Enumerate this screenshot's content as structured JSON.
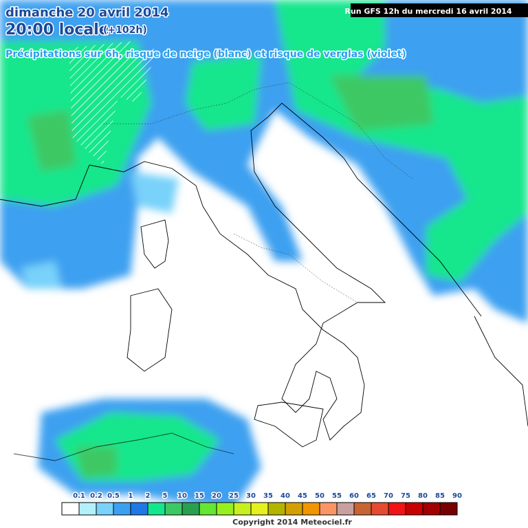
{
  "header": {
    "day": "dimanche 20 avril 2014",
    "time": "20:00 locale",
    "lead": "(+102h)",
    "subtitle": "Précipitations sur 6h, risque de neige (blanc) et risque de verglas (violet)",
    "run": "Run GFS 12h du mercredi 16 avril 2014"
  },
  "legend": {
    "labels": [
      "0.1",
      "0.2",
      "0.5",
      "1",
      "2",
      "5",
      "10",
      "15",
      "20",
      "25",
      "30",
      "35",
      "40",
      "45",
      "50",
      "55",
      "60",
      "65",
      "70",
      "75",
      "80",
      "85",
      "90"
    ],
    "colors": [
      "#ffffff",
      "#b4f0fa",
      "#78d2fa",
      "#3ca0f0",
      "#1e78e6",
      "#14e68c",
      "#3cc864",
      "#28a050",
      "#64e632",
      "#96f01e",
      "#c8f01e",
      "#e6f01e",
      "#b4b400",
      "#d2a000",
      "#f09600",
      "#fa9664",
      "#c8a0a0",
      "#c86432",
      "#e64b32",
      "#f01414",
      "#c80000",
      "#a00000",
      "#780000"
    ]
  },
  "footer": {
    "copyright": "Copyright 2014 Meteociel.fr"
  }
}
